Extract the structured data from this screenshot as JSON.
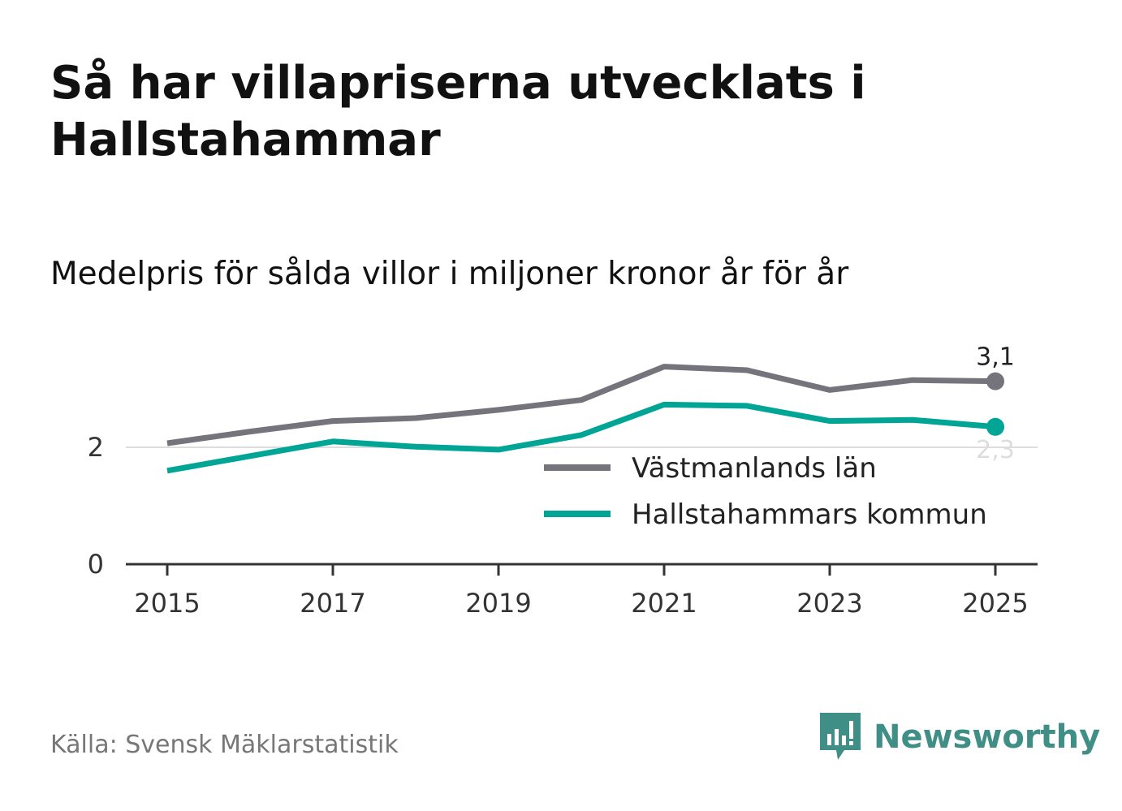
{
  "title": "Så har villapriserna utvecklats i Hallstahammar",
  "subtitle": "Medelpris för sålda villor i miljoner kronor år för år",
  "source": "Källa: Svensk Mäklarstatistik",
  "brand": {
    "name": "Newsworthy",
    "icon": "newsworthy-logo-icon",
    "color": "#3f8f87"
  },
  "chart_data": {
    "type": "line",
    "x": [
      2015,
      2016,
      2017,
      2018,
      2019,
      2020,
      2021,
      2022,
      2023,
      2024,
      2025
    ],
    "x_tick_labels": [
      "2015",
      "2017",
      "2019",
      "2021",
      "2023",
      "2025"
    ],
    "y_tick_labels": [
      "0",
      "2"
    ],
    "ylim": [
      0,
      3.6
    ],
    "series": [
      {
        "name": "Västmanlands län",
        "color": "#75737b",
        "values": [
          2.07,
          2.27,
          2.45,
          2.5,
          2.64,
          2.81,
          3.38,
          3.32,
          2.98,
          3.15,
          3.13
        ],
        "end_label": "3,1"
      },
      {
        "name": "Hallstahammars kommun",
        "color": "#00a596",
        "values": [
          1.6,
          1.85,
          2.1,
          2.01,
          1.96,
          2.21,
          2.73,
          2.71,
          2.45,
          2.47,
          2.35
        ],
        "end_label": "2,3"
      }
    ],
    "grid": "horizontal at 2",
    "legend_position": "bottom-right"
  }
}
